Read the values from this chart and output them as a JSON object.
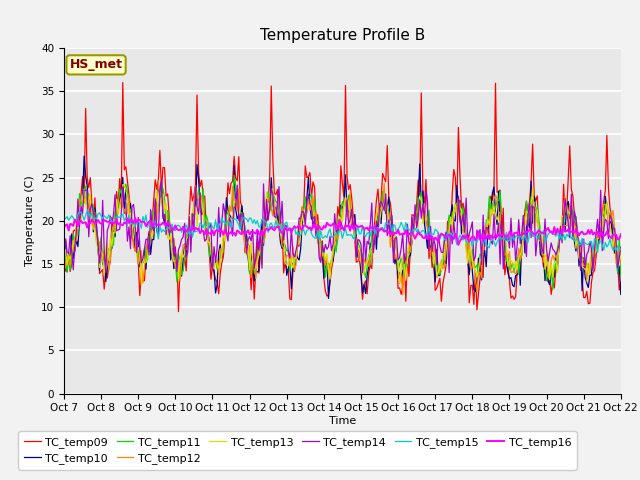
{
  "title": "Temperature Profile B",
  "xlabel": "Time",
  "ylabel": "Temperature (C)",
  "ylim": [
    0,
    40
  ],
  "yticks": [
    0,
    5,
    10,
    15,
    20,
    25,
    30,
    35,
    40
  ],
  "annotation_text": "HS_met",
  "series_colors": {
    "TC_temp09": "#ff0000",
    "TC_temp10": "#00008b",
    "TC_temp11": "#00dd00",
    "TC_temp12": "#ff8800",
    "TC_temp13": "#dddd00",
    "TC_temp14": "#aa00cc",
    "TC_temp15": "#00cccc",
    "TC_temp16": "#ff00ff"
  },
  "series_order": [
    "TC_temp09",
    "TC_temp10",
    "TC_temp11",
    "TC_temp12",
    "TC_temp13",
    "TC_temp14",
    "TC_temp15",
    "TC_temp16"
  ],
  "x_tick_labels": [
    "Oct 7",
    "Oct 8",
    "Oct 9",
    "Oct 10",
    "Oct 11",
    "Oct 12",
    "Oct 13",
    "Oct 14",
    "Oct 15",
    "Oct 16",
    "Oct 17",
    "Oct 18",
    "Oct 19",
    "Oct 20",
    "Oct 21",
    "Oct 22"
  ],
  "plot_bg_color": "#e8e8e8",
  "fig_bg_color": "#f2f2f2",
  "legend_fontsize": 8,
  "title_fontsize": 11,
  "tick_fontsize": 7.5
}
